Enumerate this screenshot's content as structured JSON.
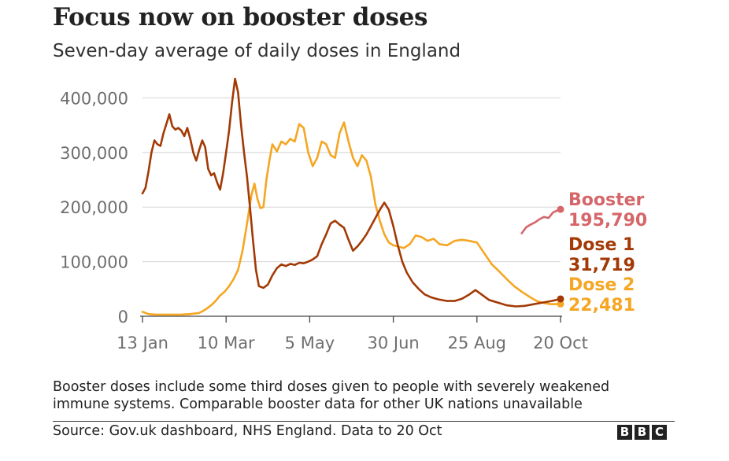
{
  "chart_data": {
    "type": "line",
    "title": "Focus now on booster doses",
    "subtitle": "Seven-day average of daily doses in England",
    "x_ticks": [
      "13 Jan",
      "10 Mar",
      "5 May",
      "30 Jun",
      "25 Aug",
      "20 Oct"
    ],
    "y_ticks": [
      "0",
      "100,000",
      "200,000",
      "300,000",
      "400,000"
    ],
    "ylim": [
      0,
      440000
    ],
    "x_start": "2021-01-13",
    "x_end": "2021-10-20",
    "grid": true,
    "legend": "direct labels at line ends",
    "series": [
      {
        "name": "Dose 1",
        "color": "#a33a06",
        "end_value_label": "31,719",
        "points": [
          [
            "2021-01-13",
            225000
          ],
          [
            "2021-01-15",
            235000
          ],
          [
            "2021-01-17",
            265000
          ],
          [
            "2021-01-19",
            300000
          ],
          [
            "2021-01-21",
            322000
          ],
          [
            "2021-01-23",
            315000
          ],
          [
            "2021-01-25",
            312000
          ],
          [
            "2021-01-27",
            335000
          ],
          [
            "2021-01-29",
            352000
          ],
          [
            "2021-01-31",
            370000
          ],
          [
            "2021-02-02",
            348000
          ],
          [
            "2021-02-04",
            342000
          ],
          [
            "2021-02-06",
            345000
          ],
          [
            "2021-02-08",
            340000
          ],
          [
            "2021-02-10",
            330000
          ],
          [
            "2021-02-12",
            345000
          ],
          [
            "2021-02-14",
            325000
          ],
          [
            "2021-02-16",
            300000
          ],
          [
            "2021-02-18",
            285000
          ],
          [
            "2021-02-20",
            305000
          ],
          [
            "2021-02-22",
            322000
          ],
          [
            "2021-02-24",
            310000
          ],
          [
            "2021-02-26",
            270000
          ],
          [
            "2021-02-28",
            258000
          ],
          [
            "2021-03-02",
            262000
          ],
          [
            "2021-03-04",
            245000
          ],
          [
            "2021-03-06",
            232000
          ],
          [
            "2021-03-08",
            262000
          ],
          [
            "2021-03-10",
            300000
          ],
          [
            "2021-03-12",
            340000
          ],
          [
            "2021-03-14",
            392000
          ],
          [
            "2021-03-16",
            435000
          ],
          [
            "2021-03-18",
            410000
          ],
          [
            "2021-03-20",
            350000
          ],
          [
            "2021-03-22",
            300000
          ],
          [
            "2021-03-24",
            255000
          ],
          [
            "2021-03-26",
            200000
          ],
          [
            "2021-03-28",
            140000
          ],
          [
            "2021-03-30",
            85000
          ],
          [
            "2021-04-01",
            55000
          ],
          [
            "2021-04-04",
            52000
          ],
          [
            "2021-04-07",
            58000
          ],
          [
            "2021-04-10",
            75000
          ],
          [
            "2021-04-13",
            88000
          ],
          [
            "2021-04-16",
            95000
          ],
          [
            "2021-04-19",
            92000
          ],
          [
            "2021-04-22",
            96000
          ],
          [
            "2021-04-25",
            94000
          ],
          [
            "2021-04-28",
            98000
          ],
          [
            "2021-05-01",
            97000
          ],
          [
            "2021-05-04",
            100000
          ],
          [
            "2021-05-07",
            104000
          ],
          [
            "2021-05-10",
            110000
          ],
          [
            "2021-05-13",
            132000
          ],
          [
            "2021-05-16",
            150000
          ],
          [
            "2021-05-19",
            170000
          ],
          [
            "2021-05-22",
            175000
          ],
          [
            "2021-05-25",
            168000
          ],
          [
            "2021-05-28",
            162000
          ],
          [
            "2021-05-31",
            140000
          ],
          [
            "2021-06-03",
            120000
          ],
          [
            "2021-06-06",
            128000
          ],
          [
            "2021-06-09",
            138000
          ],
          [
            "2021-06-12",
            150000
          ],
          [
            "2021-06-15",
            165000
          ],
          [
            "2021-06-18",
            180000
          ],
          [
            "2021-06-21",
            195000
          ],
          [
            "2021-06-24",
            208000
          ],
          [
            "2021-06-27",
            195000
          ],
          [
            "2021-06-30",
            165000
          ],
          [
            "2021-07-03",
            130000
          ],
          [
            "2021-07-06",
            100000
          ],
          [
            "2021-07-09",
            80000
          ],
          [
            "2021-07-13",
            62000
          ],
          [
            "2021-07-17",
            50000
          ],
          [
            "2021-07-21",
            40000
          ],
          [
            "2021-07-25",
            35000
          ],
          [
            "2021-07-30",
            31000
          ],
          [
            "2021-08-05",
            28000
          ],
          [
            "2021-08-10",
            28000
          ],
          [
            "2021-08-15",
            32000
          ],
          [
            "2021-08-20",
            40000
          ],
          [
            "2021-08-24",
            48000
          ],
          [
            "2021-08-28",
            40000
          ],
          [
            "2021-09-02",
            30000
          ],
          [
            "2021-09-08",
            25000
          ],
          [
            "2021-09-14",
            20000
          ],
          [
            "2021-09-20",
            18000
          ],
          [
            "2021-09-26",
            19000
          ],
          [
            "2021-10-02",
            22000
          ],
          [
            "2021-10-08",
            25000
          ],
          [
            "2021-10-14",
            28000
          ],
          [
            "2021-10-20",
            31719
          ]
        ]
      },
      {
        "name": "Dose 2",
        "color": "#f5a623",
        "end_value_label": "22,481",
        "points": [
          [
            "2021-01-13",
            8000
          ],
          [
            "2021-01-17",
            4000
          ],
          [
            "2021-01-22",
            3000
          ],
          [
            "2021-01-27",
            3000
          ],
          [
            "2021-02-02",
            3000
          ],
          [
            "2021-02-08",
            3000
          ],
          [
            "2021-02-14",
            4000
          ],
          [
            "2021-02-20",
            6000
          ],
          [
            "2021-02-24",
            12000
          ],
          [
            "2021-02-28",
            20000
          ],
          [
            "2021-03-03",
            28000
          ],
          [
            "2021-03-06",
            38000
          ],
          [
            "2021-03-09",
            45000
          ],
          [
            "2021-03-12",
            55000
          ],
          [
            "2021-03-15",
            68000
          ],
          [
            "2021-03-18",
            85000
          ],
          [
            "2021-03-21",
            120000
          ],
          [
            "2021-03-24",
            170000
          ],
          [
            "2021-03-27",
            222000
          ],
          [
            "2021-03-29",
            243000
          ],
          [
            "2021-03-31",
            215000
          ],
          [
            "2021-04-02",
            198000
          ],
          [
            "2021-04-04",
            200000
          ],
          [
            "2021-04-06",
            250000
          ],
          [
            "2021-04-08",
            285000
          ],
          [
            "2021-04-10",
            315000
          ],
          [
            "2021-04-13",
            302000
          ],
          [
            "2021-04-16",
            320000
          ],
          [
            "2021-04-19",
            315000
          ],
          [
            "2021-04-22",
            325000
          ],
          [
            "2021-04-25",
            320000
          ],
          [
            "2021-04-28",
            352000
          ],
          [
            "2021-05-01",
            345000
          ],
          [
            "2021-05-04",
            300000
          ],
          [
            "2021-05-07",
            275000
          ],
          [
            "2021-05-10",
            290000
          ],
          [
            "2021-05-13",
            320000
          ],
          [
            "2021-05-16",
            315000
          ],
          [
            "2021-05-19",
            295000
          ],
          [
            "2021-05-22",
            290000
          ],
          [
            "2021-05-25",
            335000
          ],
          [
            "2021-05-28",
            355000
          ],
          [
            "2021-05-31",
            320000
          ],
          [
            "2021-06-03",
            290000
          ],
          [
            "2021-06-06",
            275000
          ],
          [
            "2021-06-09",
            295000
          ],
          [
            "2021-06-12",
            285000
          ],
          [
            "2021-06-15",
            255000
          ],
          [
            "2021-06-18",
            205000
          ],
          [
            "2021-06-21",
            175000
          ],
          [
            "2021-06-24",
            150000
          ],
          [
            "2021-06-27",
            135000
          ],
          [
            "2021-06-30",
            130000
          ],
          [
            "2021-07-03",
            128000
          ],
          [
            "2021-07-07",
            125000
          ],
          [
            "2021-07-11",
            132000
          ],
          [
            "2021-07-15",
            148000
          ],
          [
            "2021-07-19",
            145000
          ],
          [
            "2021-07-23",
            138000
          ],
          [
            "2021-07-27",
            142000
          ],
          [
            "2021-07-31",
            132000
          ],
          [
            "2021-08-05",
            130000
          ],
          [
            "2021-08-10",
            138000
          ],
          [
            "2021-08-15",
            140000
          ],
          [
            "2021-08-20",
            138000
          ],
          [
            "2021-08-25",
            135000
          ],
          [
            "2021-08-30",
            115000
          ],
          [
            "2021-09-04",
            95000
          ],
          [
            "2021-09-09",
            82000
          ],
          [
            "2021-09-14",
            68000
          ],
          [
            "2021-09-19",
            55000
          ],
          [
            "2021-09-24",
            45000
          ],
          [
            "2021-09-29",
            36000
          ],
          [
            "2021-10-04",
            28000
          ],
          [
            "2021-10-09",
            24000
          ],
          [
            "2021-10-14",
            22000
          ],
          [
            "2021-10-20",
            22481
          ]
        ]
      },
      {
        "name": "Booster",
        "color": "#d5666a",
        "end_value_label": "195,790",
        "points": [
          [
            "2021-09-24",
            152000
          ],
          [
            "2021-09-27",
            163000
          ],
          [
            "2021-09-30",
            168000
          ],
          [
            "2021-10-03",
            172000
          ],
          [
            "2021-10-06",
            178000
          ],
          [
            "2021-10-09",
            182000
          ],
          [
            "2021-10-12",
            180000
          ],
          [
            "2021-10-15",
            190000
          ],
          [
            "2021-10-18",
            194000
          ],
          [
            "2021-10-20",
            195790
          ]
        ]
      }
    ]
  },
  "footnote": "Booster doses include some third doses given to people with severely weakened immune systems. Comparable booster data for other UK nations unavailable",
  "source": "Source: Gov.uk dashboard, NHS England. Data to 20 Oct",
  "logo_letters": [
    "B",
    "B",
    "C"
  ]
}
